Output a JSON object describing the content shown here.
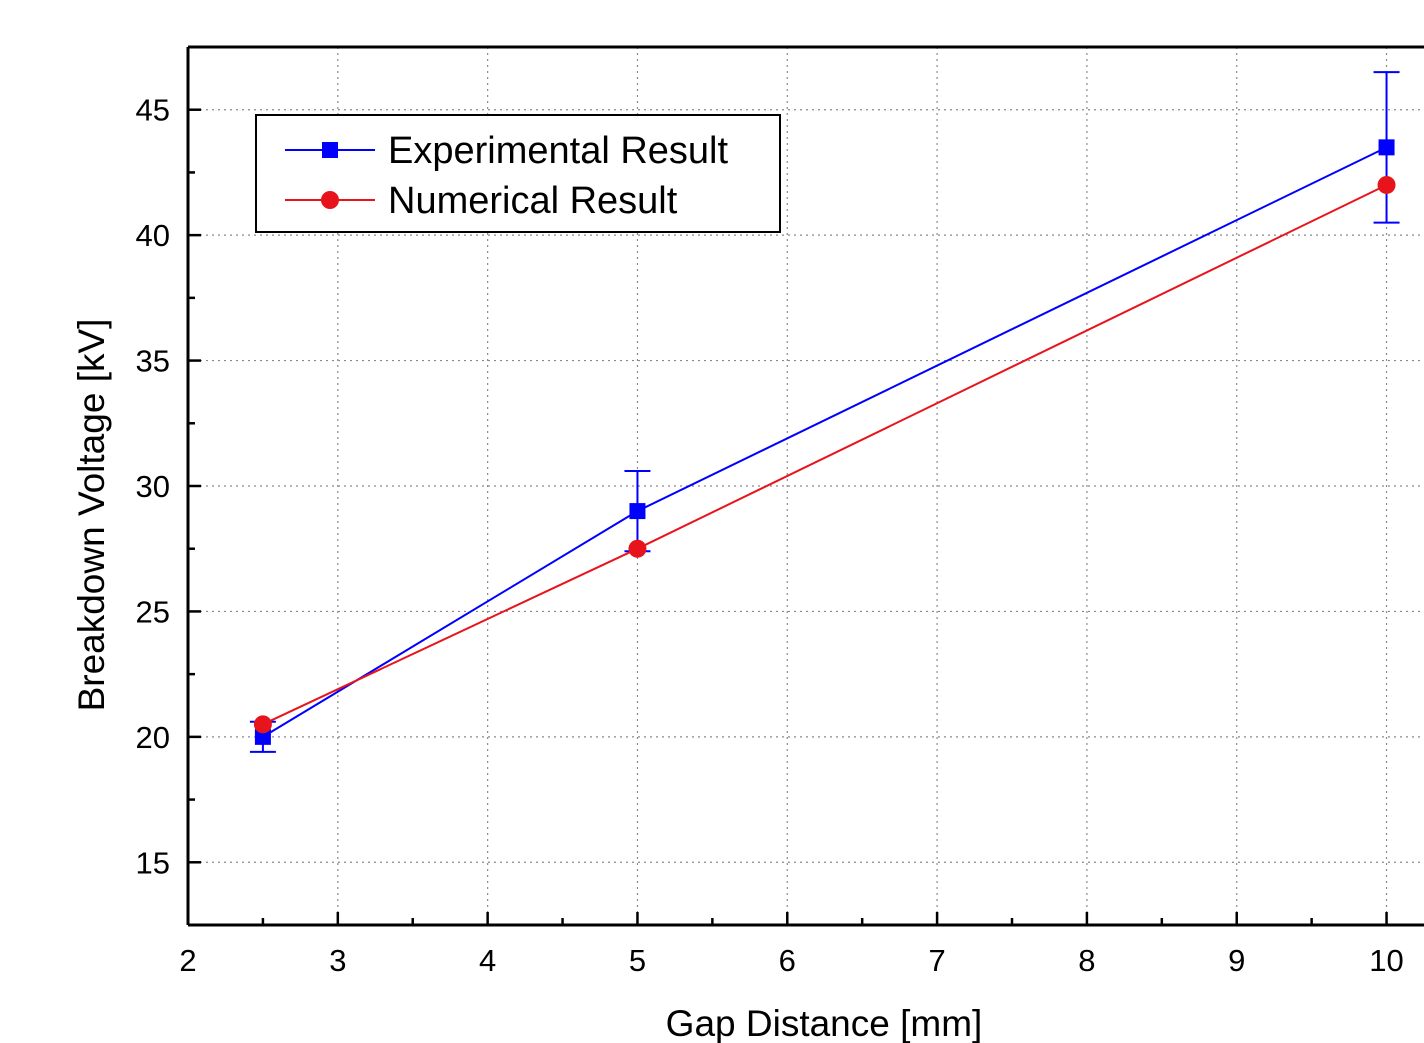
{
  "chart_data": {
    "type": "line",
    "xlabel": "Gap Distance [mm]",
    "ylabel": "Breakdown Voltage [kV]",
    "xlim": [
      2,
      10.25
    ],
    "ylim": [
      12.5,
      47.5
    ],
    "x_ticks": [
      2,
      3,
      4,
      5,
      6,
      7,
      8,
      9,
      10
    ],
    "x_tick_labels": [
      "2",
      "3",
      "4",
      "5",
      "6",
      "7",
      "8",
      "9",
      "10"
    ],
    "y_ticks": [
      15,
      20,
      25,
      30,
      35,
      40,
      45
    ],
    "y_tick_labels": [
      "15",
      "20",
      "25",
      "30",
      "35",
      "40",
      "45"
    ],
    "grid": true,
    "legend_position": "top-left",
    "series": [
      {
        "name": "Experimental Result",
        "color": "#0000ff",
        "marker": "square",
        "x": [
          2.5,
          5,
          10
        ],
        "y": [
          20.0,
          29.0,
          43.5
        ],
        "error_low": [
          19.4,
          27.4,
          40.5
        ],
        "error_high": [
          20.6,
          30.6,
          46.5
        ]
      },
      {
        "name": "Numerical Result",
        "color": "#e8141c",
        "marker": "circle",
        "x": [
          2.5,
          5,
          10
        ],
        "y": [
          20.5,
          27.5,
          42.0
        ]
      }
    ]
  }
}
